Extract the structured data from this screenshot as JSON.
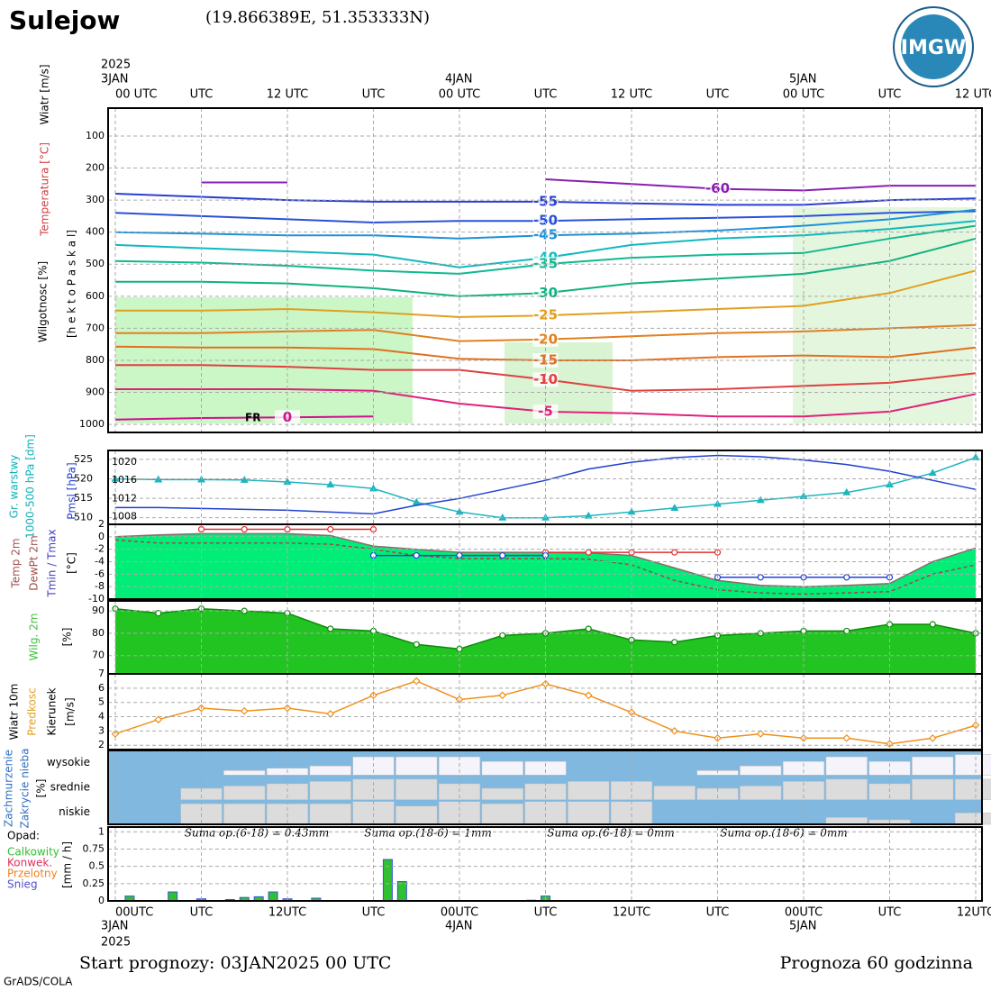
{
  "header": {
    "title": "Sulejow",
    "coords": "(19.866389E, 51.353333N)",
    "logo": "IMGW"
  },
  "footer": {
    "start": "Start prognozy: 03JAN2025 00 UTC",
    "range": "Prognoza 60 godzinna",
    "credit": "GrADS/COLA"
  },
  "time_axis": {
    "xlim": [
      0,
      60
    ],
    "ticks": [
      0,
      6,
      12,
      18,
      24,
      30,
      36,
      42,
      48,
      54,
      60
    ],
    "top_labels": [
      "00 UTC",
      "UTC",
      "12 UTC",
      "UTC",
      "00 UTC",
      "UTC",
      "12 UTC",
      "UTC",
      "00 UTC",
      "UTC",
      "12 UTC"
    ],
    "bottom_labels": [
      "00UTC",
      "UTC",
      "12UTC",
      "UTC",
      "00UTC",
      "UTC",
      "12UTC",
      "UTC",
      "00UTC",
      "UTC",
      "12UTC"
    ],
    "top_dates": [
      "2025",
      "3JAN",
      "4JAN",
      "5JAN"
    ],
    "bottom_dates": [
      "3JAN",
      "2025",
      "4JAN",
      "5JAN"
    ]
  },
  "chart_data": [
    {
      "type": "contour",
      "labels": [
        {
          "text": "Wiatr [m/s]",
          "color": "#000000"
        },
        {
          "text": "Temperatura [°C]",
          "color": "#d04040"
        },
        {
          "text": "Wilgotnosc [%]",
          "color": "#000000"
        },
        {
          "text": "[h e k t o P a s k a l]",
          "color": "#000000"
        }
      ],
      "annotation": "FR",
      "xlim": [
        0,
        60
      ],
      "ylim": [
        1025,
        13
      ],
      "yticks": [
        100,
        200,
        300,
        400,
        500,
        600,
        700,
        800,
        900,
        1000
      ],
      "x": [
        0,
        6,
        12,
        18,
        24,
        30,
        36,
        42,
        48,
        54,
        60
      ],
      "series": [
        {
          "name": "-60",
          "color": "#8a1fb0",
          "values": [
            null,
            245,
            245,
            null,
            null,
            235,
            250,
            265,
            270,
            255,
            255
          ]
        },
        {
          "name": "-55",
          "color": "#2a3fd0",
          "values": [
            280,
            290,
            300,
            305,
            305,
            305,
            310,
            315,
            315,
            300,
            295
          ]
        },
        {
          "name": "-50",
          "color": "#2a50d8",
          "values": [
            340,
            350,
            360,
            370,
            365,
            365,
            360,
            355,
            350,
            340,
            335
          ]
        },
        {
          "name": "-45",
          "color": "#1e90d8",
          "values": [
            400,
            405,
            410,
            410,
            420,
            410,
            405,
            395,
            380,
            360,
            330
          ]
        },
        {
          "name": "-40",
          "color": "#10b8c0",
          "values": [
            440,
            450,
            460,
            470,
            510,
            480,
            440,
            420,
            410,
            390,
            365
          ]
        },
        {
          "name": "-35",
          "color": "#10b890",
          "values": [
            490,
            495,
            505,
            520,
            530,
            500,
            480,
            470,
            465,
            420,
            380
          ]
        },
        {
          "name": "-30",
          "color": "#10b080",
          "values": [
            555,
            555,
            560,
            575,
            600,
            590,
            560,
            545,
            530,
            490,
            420
          ]
        },
        {
          "name": "-25",
          "color": "#e0a020",
          "values": [
            645,
            645,
            640,
            650,
            665,
            660,
            650,
            640,
            630,
            590,
            520
          ]
        },
        {
          "name": "-20",
          "color": "#e08020",
          "values": [
            715,
            715,
            710,
            705,
            740,
            735,
            725,
            715,
            710,
            700,
            690
          ]
        },
        {
          "name": "-15",
          "color": "#e07020",
          "values": [
            757,
            760,
            760,
            765,
            795,
            800,
            800,
            790,
            785,
            790,
            760
          ]
        },
        {
          "name": "-10",
          "color": "#e04040",
          "values": [
            815,
            815,
            820,
            830,
            830,
            860,
            895,
            890,
            880,
            870,
            840
          ]
        },
        {
          "name": "-5",
          "color": "#e0207a",
          "values": [
            890,
            890,
            890,
            895,
            935,
            960,
            965,
            975,
            975,
            960,
            905
          ]
        },
        {
          "name": "0",
          "color": "#d01090",
          "values": [
            985,
            980,
            978,
            975,
            null,
            null,
            null,
            null,
            null,
            null,
            null
          ]
        }
      ]
    },
    {
      "type": "line",
      "labels": [
        {
          "text": "Gr. warstwy",
          "color": "#10b0b8"
        },
        {
          "text": "1000-500 hPa [dm]",
          "color": "#10b0b8"
        },
        {
          "text": "Pmsl [hPa]",
          "color": "#2040d0"
        }
      ],
      "xlim": [
        0,
        60
      ],
      "ylim": [
        508.3,
        527.3
      ],
      "yticks": [
        510,
        515,
        520,
        525
      ],
      "y2lim": [
        1006.3,
        1022.6
      ],
      "y2ticks": [
        1008,
        1012,
        1016,
        1020
      ],
      "x": [
        0,
        3,
        6,
        9,
        12,
        15,
        18,
        21,
        24,
        27,
        30,
        33,
        36,
        39,
        42,
        45,
        48,
        51,
        54,
        57,
        60
      ],
      "series": [
        {
          "color": "#1fb5c0",
          "marker": "triangle",
          "values": [
            520,
            519.8,
            519.8,
            519.7,
            519.2,
            518.5,
            517.5,
            514,
            511.5,
            510,
            510,
            510.5,
            511.5,
            512.5,
            513.5,
            514.5,
            515.5,
            516.5,
            518.5,
            521.5,
            525.5
          ]
        },
        {
          "color": "#2040d0",
          "axis": "y2",
          "values": [
            1010,
            1010,
            1009.8,
            1009.6,
            1009.4,
            1009,
            1008.6,
            1010.5,
            1012,
            1014,
            1016,
            1018.5,
            1020,
            1021,
            1021.5,
            1021.2,
            1020.5,
            1019.5,
            1018,
            1016,
            1014
          ]
        }
      ]
    },
    {
      "type": "line",
      "labels": [
        {
          "text": "Temp 2m",
          "color": "#a05050"
        },
        {
          "text": "DewPt 2m",
          "color": "#a05050"
        },
        {
          "text": "Tmin / Tmax",
          "color": "#4040c0"
        },
        {
          "text": "[°C]",
          "color": "#000000"
        }
      ],
      "xlim": [
        0,
        60
      ],
      "ylim": [
        -10,
        2
      ],
      "yticks": [
        -10,
        -8,
        -6,
        -4,
        -2,
        0,
        2
      ],
      "x": [
        0,
        3,
        6,
        9,
        12,
        15,
        18,
        21,
        24,
        27,
        30,
        33,
        36,
        39,
        42,
        45,
        48,
        51,
        54,
        57,
        60
      ],
      "series": [
        {
          "color": "#8a6a6a",
          "fill": "#00ee77",
          "values": [
            0,
            0.3,
            0.5,
            0.5,
            0.5,
            0.2,
            -1.5,
            -2,
            -2.5,
            -2.5,
            -2.5,
            -2.6,
            -3,
            -5,
            -7,
            -7.8,
            -8,
            -7.8,
            -7.5,
            -4,
            -1.8
          ]
        },
        {
          "color": "#a04848",
          "dash": true,
          "values": [
            -0.5,
            -1,
            -1,
            -1,
            -1,
            -1.2,
            -2,
            -3,
            -3.5,
            -3.5,
            -3.5,
            -3.6,
            -4.5,
            -7,
            -8.5,
            -9,
            -9.2,
            -9,
            -8.8,
            -6,
            -4.5
          ]
        },
        {
          "color": "#e03030",
          "marker": "circle",
          "values": [
            null,
            null,
            1.2,
            1.2,
            1.2,
            1.2,
            1.2,
            null,
            null,
            null,
            -2.5,
            -2.5,
            -2.5,
            -2.5,
            -2.5,
            null,
            null,
            null,
            null,
            null,
            null
          ]
        },
        {
          "color": "#2040e0",
          "marker": "circle",
          "values": [
            null,
            null,
            null,
            null,
            null,
            null,
            -3,
            -3,
            -3,
            -3,
            -3,
            null,
            null,
            null,
            -6.5,
            -6.5,
            -6.5,
            -6.5,
            -6.5,
            null,
            null
          ]
        }
      ]
    },
    {
      "type": "line",
      "labels": [
        {
          "text": "Wilg. 2m",
          "color": "#40c040"
        },
        {
          "text": "[%]",
          "color": "#000000"
        }
      ],
      "xlim": [
        0,
        60
      ],
      "ylim": [
        61.8,
        94.5
      ],
      "yticks": [
        70,
        80,
        90
      ],
      "x": [
        0,
        3,
        6,
        9,
        12,
        15,
        18,
        21,
        24,
        27,
        30,
        33,
        36,
        39,
        42,
        45,
        48,
        51,
        54,
        57,
        60
      ],
      "series": [
        {
          "color": "#0a8a0a",
          "fill": "#22c422",
          "marker": "circle",
          "values": [
            91,
            89,
            91,
            90,
            89,
            82,
            81,
            75,
            73,
            79,
            80,
            82,
            77,
            76,
            79,
            80,
            81,
            81,
            84,
            84,
            80
          ]
        }
      ]
    },
    {
      "type": "line",
      "labels": [
        {
          "text": "Wiatr 10m",
          "color": "#000000"
        },
        {
          "text": "Predkosc",
          "color": "#e0a020"
        },
        {
          "text": "Kierunek",
          "color": "#000000"
        },
        {
          "text": "[m/s]",
          "color": "#000000"
        }
      ],
      "xlim": [
        0,
        60
      ],
      "ylim": [
        1.7,
        7
      ],
      "yticks": [
        2,
        3,
        4,
        5,
        6,
        7
      ],
      "x": [
        0,
        3,
        6,
        9,
        12,
        15,
        18,
        21,
        24,
        27,
        30,
        33,
        36,
        39,
        42,
        45,
        48,
        51,
        54,
        57,
        60
      ],
      "series": [
        {
          "color": "#f0901a",
          "marker": "diamond",
          "values": [
            2.8,
            3.8,
            4.6,
            4.4,
            4.6,
            4.2,
            5.5,
            6.5,
            5.2,
            5.5,
            6.3,
            5.5,
            4.3,
            3,
            2.5,
            2.8,
            2.5,
            2.5,
            2.1,
            2.5,
            3.4
          ]
        }
      ]
    },
    {
      "type": "cloud",
      "labels": [
        {
          "text": "Zachmurzenie",
          "color": "#3070c0"
        },
        {
          "text": "Zakrycie nieba",
          "color": "#3070c0"
        },
        {
          "text": "[%]",
          "color": "#000000"
        }
      ],
      "xlim": [
        0,
        60
      ],
      "ylim": [
        0,
        100
      ],
      "x": [
        0,
        3,
        6,
        9,
        12,
        15,
        18,
        21,
        24,
        27,
        30,
        33,
        36,
        39,
        42,
        45,
        48,
        51,
        54,
        57,
        60
      ],
      "series": [
        {
          "name": "wysokie",
          "values": [
            0,
            0,
            0,
            20,
            30,
            40,
            80,
            80,
            80,
            60,
            60,
            0,
            0,
            0,
            20,
            40,
            60,
            80,
            60,
            80,
            90
          ]
        },
        {
          "name": "srednie",
          "values": [
            0,
            0,
            50,
            60,
            70,
            80,
            90,
            90,
            70,
            50,
            70,
            80,
            80,
            60,
            50,
            60,
            80,
            90,
            70,
            90,
            90
          ]
        },
        {
          "name": "niskie",
          "values": [
            0,
            0,
            90,
            90,
            90,
            90,
            100,
            80,
            100,
            90,
            100,
            100,
            100,
            0,
            0,
            0,
            0,
            30,
            20,
            0,
            50
          ]
        }
      ]
    },
    {
      "type": "bar",
      "labels": [
        {
          "text": "[mm / h]",
          "color": "#000000"
        }
      ],
      "legend_title": "Opad:",
      "legend": [
        {
          "text": "Calkowity",
          "color": "#30c030"
        },
        {
          "text": "Konwek.",
          "color": "#e03060"
        },
        {
          "text": "Przelotny",
          "color": "#f08020"
        },
        {
          "text": "Snieg",
          "color": "#5050d0"
        }
      ],
      "annotations": [
        "Suma op.(6-18) = 0.43mm",
        "Suma op.(18-6) = 1mm",
        "Suma op.(6-18) = 0mm",
        "Suma op.(18-6) = 0mm"
      ],
      "xlim": [
        0,
        60
      ],
      "ylim": [
        0,
        1.07
      ],
      "yticks": [
        0,
        0.25,
        0.5,
        0.75,
        1
      ],
      "x": [
        1,
        4,
        6,
        8,
        9,
        10,
        11,
        12,
        14,
        19,
        20,
        29,
        30
      ],
      "color": "#30c030",
      "values": [
        0.07,
        0.13,
        0.03,
        0.02,
        0.05,
        0.06,
        0.13,
        0.03,
        0.04,
        0.6,
        0.28,
        0.01,
        0.07
      ]
    }
  ]
}
